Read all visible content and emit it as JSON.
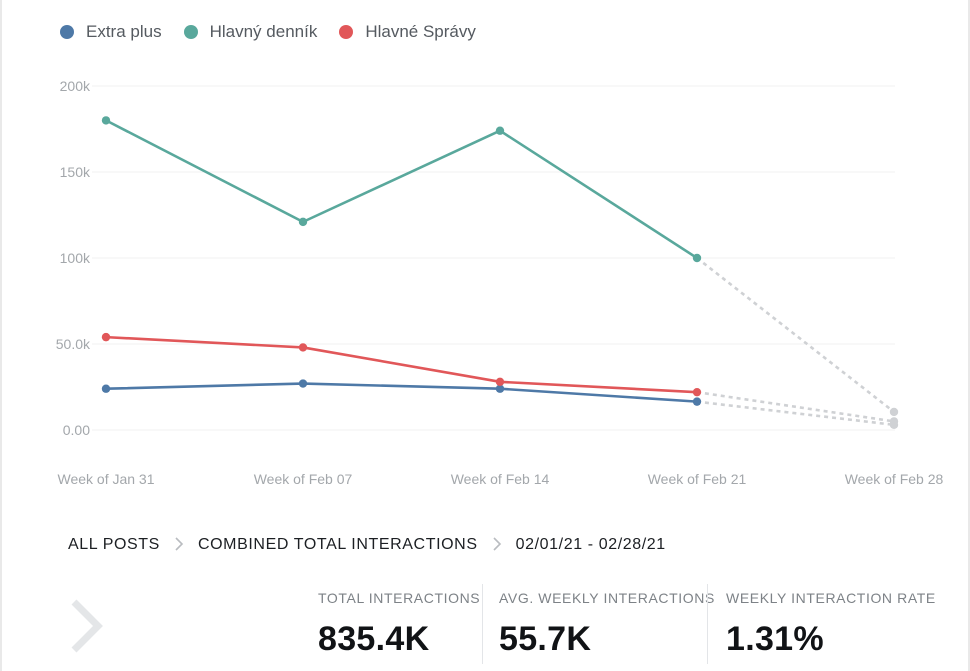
{
  "chart_data": {
    "type": "line",
    "categories": [
      "Week of Jan 31",
      "Week of Feb 07",
      "Week of Feb 14",
      "Week of Feb 21",
      "Week of Feb 28"
    ],
    "series": [
      {
        "name": "Extra plus",
        "color": "#4e79a7",
        "values": [
          24000,
          27000,
          24000,
          16500,
          3000
        ]
      },
      {
        "name": "Hlavný denník",
        "color": "#59a89c",
        "values": [
          180000,
          121000,
          174000,
          100000,
          10500
        ]
      },
      {
        "name": "Hlavné Správy",
        "color": "#e15759",
        "values": [
          54000,
          48000,
          28000,
          22000,
          5000
        ]
      }
    ],
    "projected_from_index": 3,
    "projection_color": "#cfd1d4",
    "y_ticks": [
      0,
      50000,
      100000,
      150000,
      200000
    ],
    "y_tick_labels": [
      "0.00",
      "50.0k",
      "100k",
      "150k",
      "200k"
    ],
    "ylim": [
      0,
      200000
    ],
    "grid": true,
    "legend": "top-left"
  },
  "breadcrumb": {
    "items": [
      "ALL POSTS",
      "COMBINED TOTAL INTERACTIONS"
    ],
    "date_range": "02/01/21 - 02/28/21"
  },
  "stats": {
    "total": {
      "label": "TOTAL INTERACTIONS",
      "value": "835.4K"
    },
    "avg": {
      "label": "AVG. WEEKLY INTERACTIONS",
      "value": "55.7K"
    },
    "rate": {
      "label": "WEEKLY INTERACTION RATE",
      "value": "1.31%"
    }
  },
  "icons": {
    "breadcrumb_separator": "chevron-right-icon",
    "previous": "chevron-left-icon"
  }
}
